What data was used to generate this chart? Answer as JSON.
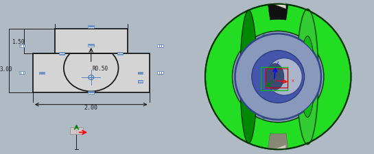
{
  "bg_color_left": "#c0c0c0",
  "bg_color_right": "#b8bfc8",
  "left_panel": {
    "shape_color": "#1a1a1a",
    "shape_fill": "#d4d4d4",
    "constraint_color": "#4477bb",
    "radius_label": "R0.50",
    "dim_200": "2.00",
    "dim_300": "3.00",
    "dim_150": "1.50"
  },
  "right_panel": {
    "green_bright": "#22dd22",
    "green_mid": "#11bb11",
    "green_dark": "#008800",
    "green_inner_face": "#33cc33",
    "blue_face": "#8899bb",
    "blue_dark": "#4455aa",
    "blue_inner_dark": "#3344aa",
    "bore_light": "#aab5cc",
    "bore_mid": "#8899bb",
    "bg_color": "#b0bac5"
  }
}
